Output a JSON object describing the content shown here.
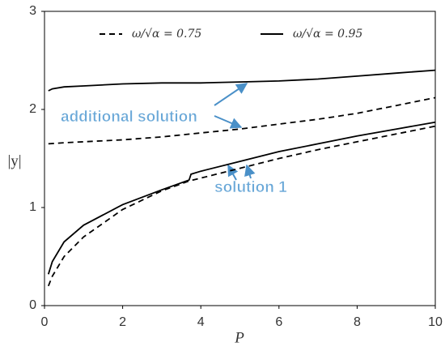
{
  "chart_data": {
    "type": "line",
    "x_label": "P",
    "y_label": "|y|",
    "xlim": [
      0,
      10
    ],
    "ylim": [
      0,
      3
    ],
    "xticks": [
      0,
      2,
      4,
      6,
      8,
      10
    ],
    "yticks": [
      0,
      1,
      2,
      3
    ],
    "grid": false,
    "legend": "top",
    "annotations": [
      "additional solution",
      "solution 1"
    ],
    "series": [
      {
        "name": "ω/√α = 0.75",
        "color": "#000000",
        "dash": "7,5",
        "branches": [
          {
            "x": [
              0.1,
              0.2,
              0.5,
              1,
              2,
              3,
              3.7,
              4,
              5,
              6,
              7,
              8,
              9,
              10
            ],
            "values": [
              0.2,
              0.3,
              0.5,
              0.7,
              0.98,
              1.17,
              1.27,
              1.3,
              1.4,
              1.5,
              1.59,
              1.67,
              1.75,
              1.83
            ]
          },
          {
            "x": [
              0.1,
              0.5,
              1,
              2,
              3,
              4,
              5,
              6,
              7,
              8,
              9,
              10
            ],
            "values": [
              1.65,
              1.66,
              1.67,
              1.69,
              1.72,
              1.76,
              1.8,
              1.85,
              1.9,
              1.96,
              2.04,
              2.12
            ]
          }
        ]
      },
      {
        "name": "ω/√α = 0.95",
        "color": "#000000",
        "dash": "none",
        "branches": [
          {
            "x": [
              0.1,
              0.2,
              0.5,
              1,
              2,
              3,
              3.7,
              3.75,
              4,
              5,
              6,
              7,
              8,
              9,
              10
            ],
            "values": [
              0.32,
              0.45,
              0.65,
              0.82,
              1.03,
              1.18,
              1.28,
              1.34,
              1.37,
              1.47,
              1.57,
              1.65,
              1.73,
              1.8,
              1.87
            ]
          },
          {
            "x": [
              0.1,
              0.2,
              0.5,
              1,
              2,
              3,
              4,
              5,
              6,
              7,
              8,
              9,
              10
            ],
            "values": [
              2.19,
              2.21,
              2.23,
              2.24,
              2.26,
              2.27,
              2.27,
              2.28,
              2.29,
              2.31,
              2.34,
              2.37,
              2.4
            ]
          }
        ]
      }
    ]
  }
}
